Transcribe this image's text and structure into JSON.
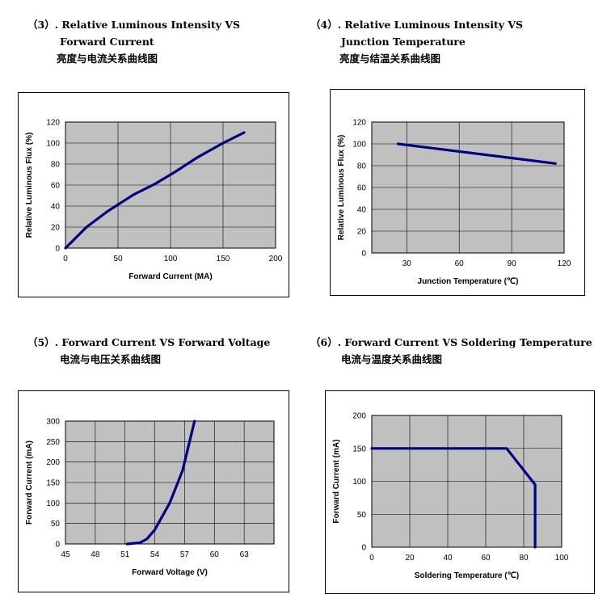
{
  "headings": [
    {
      "l1": "（3）. Relative Luminous Intensity VS",
      "l2": "Forward Current",
      "cn": "亮度与电流关系曲线图"
    },
    {
      "l1": "（4）. Relative Luminous Intensity VS",
      "l2": "Junction Temperature",
      "cn": "亮度与结温关系曲线图"
    },
    {
      "l1": "（5）. Forward Current VS Forward Voltage",
      "l2": "",
      "cn": "电流与电压关系曲线图"
    },
    {
      "l1": "（6）. Forward Current VS Soldering Temperature",
      "l2": "",
      "cn": "电流与温度关系曲线图"
    }
  ],
  "chart_data": [
    {
      "type": "line",
      "xlabel": "Forward Current (MA)",
      "ylabel": "Relative Luminous Flux (%)",
      "xlim": [
        0,
        200
      ],
      "ylim": [
        0,
        120
      ],
      "xticks": [
        0,
        50,
        100,
        150,
        200
      ],
      "yticks": [
        0,
        20,
        40,
        60,
        80,
        100,
        120
      ],
      "grid": true,
      "series": [
        {
          "x": [
            0,
            20,
            40,
            65,
            85,
            105,
            125,
            150,
            170
          ],
          "y": [
            0,
            20,
            35,
            51,
            61,
            73,
            86,
            100,
            110
          ]
        }
      ]
    },
    {
      "type": "line",
      "xlabel": "Junction Temperature (℃)",
      "ylabel": "Relative Luminous Flux (%)",
      "xlim": [
        10,
        120
      ],
      "ylim": [
        0,
        120
      ],
      "xticks": [
        30,
        60,
        90,
        120
      ],
      "yticks": [
        0,
        20,
        40,
        60,
        80,
        100,
        120
      ],
      "grid": true,
      "series": [
        {
          "x": [
            25,
            115
          ],
          "y": [
            100,
            82
          ]
        }
      ]
    },
    {
      "type": "line",
      "xlabel": "Forward Voltage (V)",
      "ylabel": "Forward Current (mA)",
      "xlim": [
        45,
        66
      ],
      "ylim": [
        0,
        300
      ],
      "xticks": [
        45,
        48,
        51,
        54,
        57,
        60,
        63
      ],
      "yticks": [
        0,
        50,
        100,
        150,
        200,
        250,
        300
      ],
      "grid": true,
      "series": [
        {
          "x": [
            51.2,
            52.5,
            53.2,
            54,
            55.5,
            56.8,
            57.5,
            58
          ],
          "y": [
            0,
            3,
            12,
            35,
            100,
            180,
            250,
            300
          ]
        }
      ]
    },
    {
      "type": "line",
      "xlabel": "Soldering Temperature (℃)",
      "ylabel": "Forward Current (mA)",
      "xlim": [
        0,
        100
      ],
      "ylim": [
        0,
        200
      ],
      "xticks": [
        0,
        20,
        40,
        60,
        80,
        100
      ],
      "yticks": [
        0,
        50,
        100,
        150,
        200
      ],
      "grid": true,
      "series": [
        {
          "x": [
            0,
            71,
            86,
            86
          ],
          "y": [
            150,
            150,
            95,
            0
          ]
        }
      ]
    }
  ],
  "colors": {
    "plot_bg": "#c0c0c0",
    "line": "#000080",
    "grid": "#000000"
  }
}
